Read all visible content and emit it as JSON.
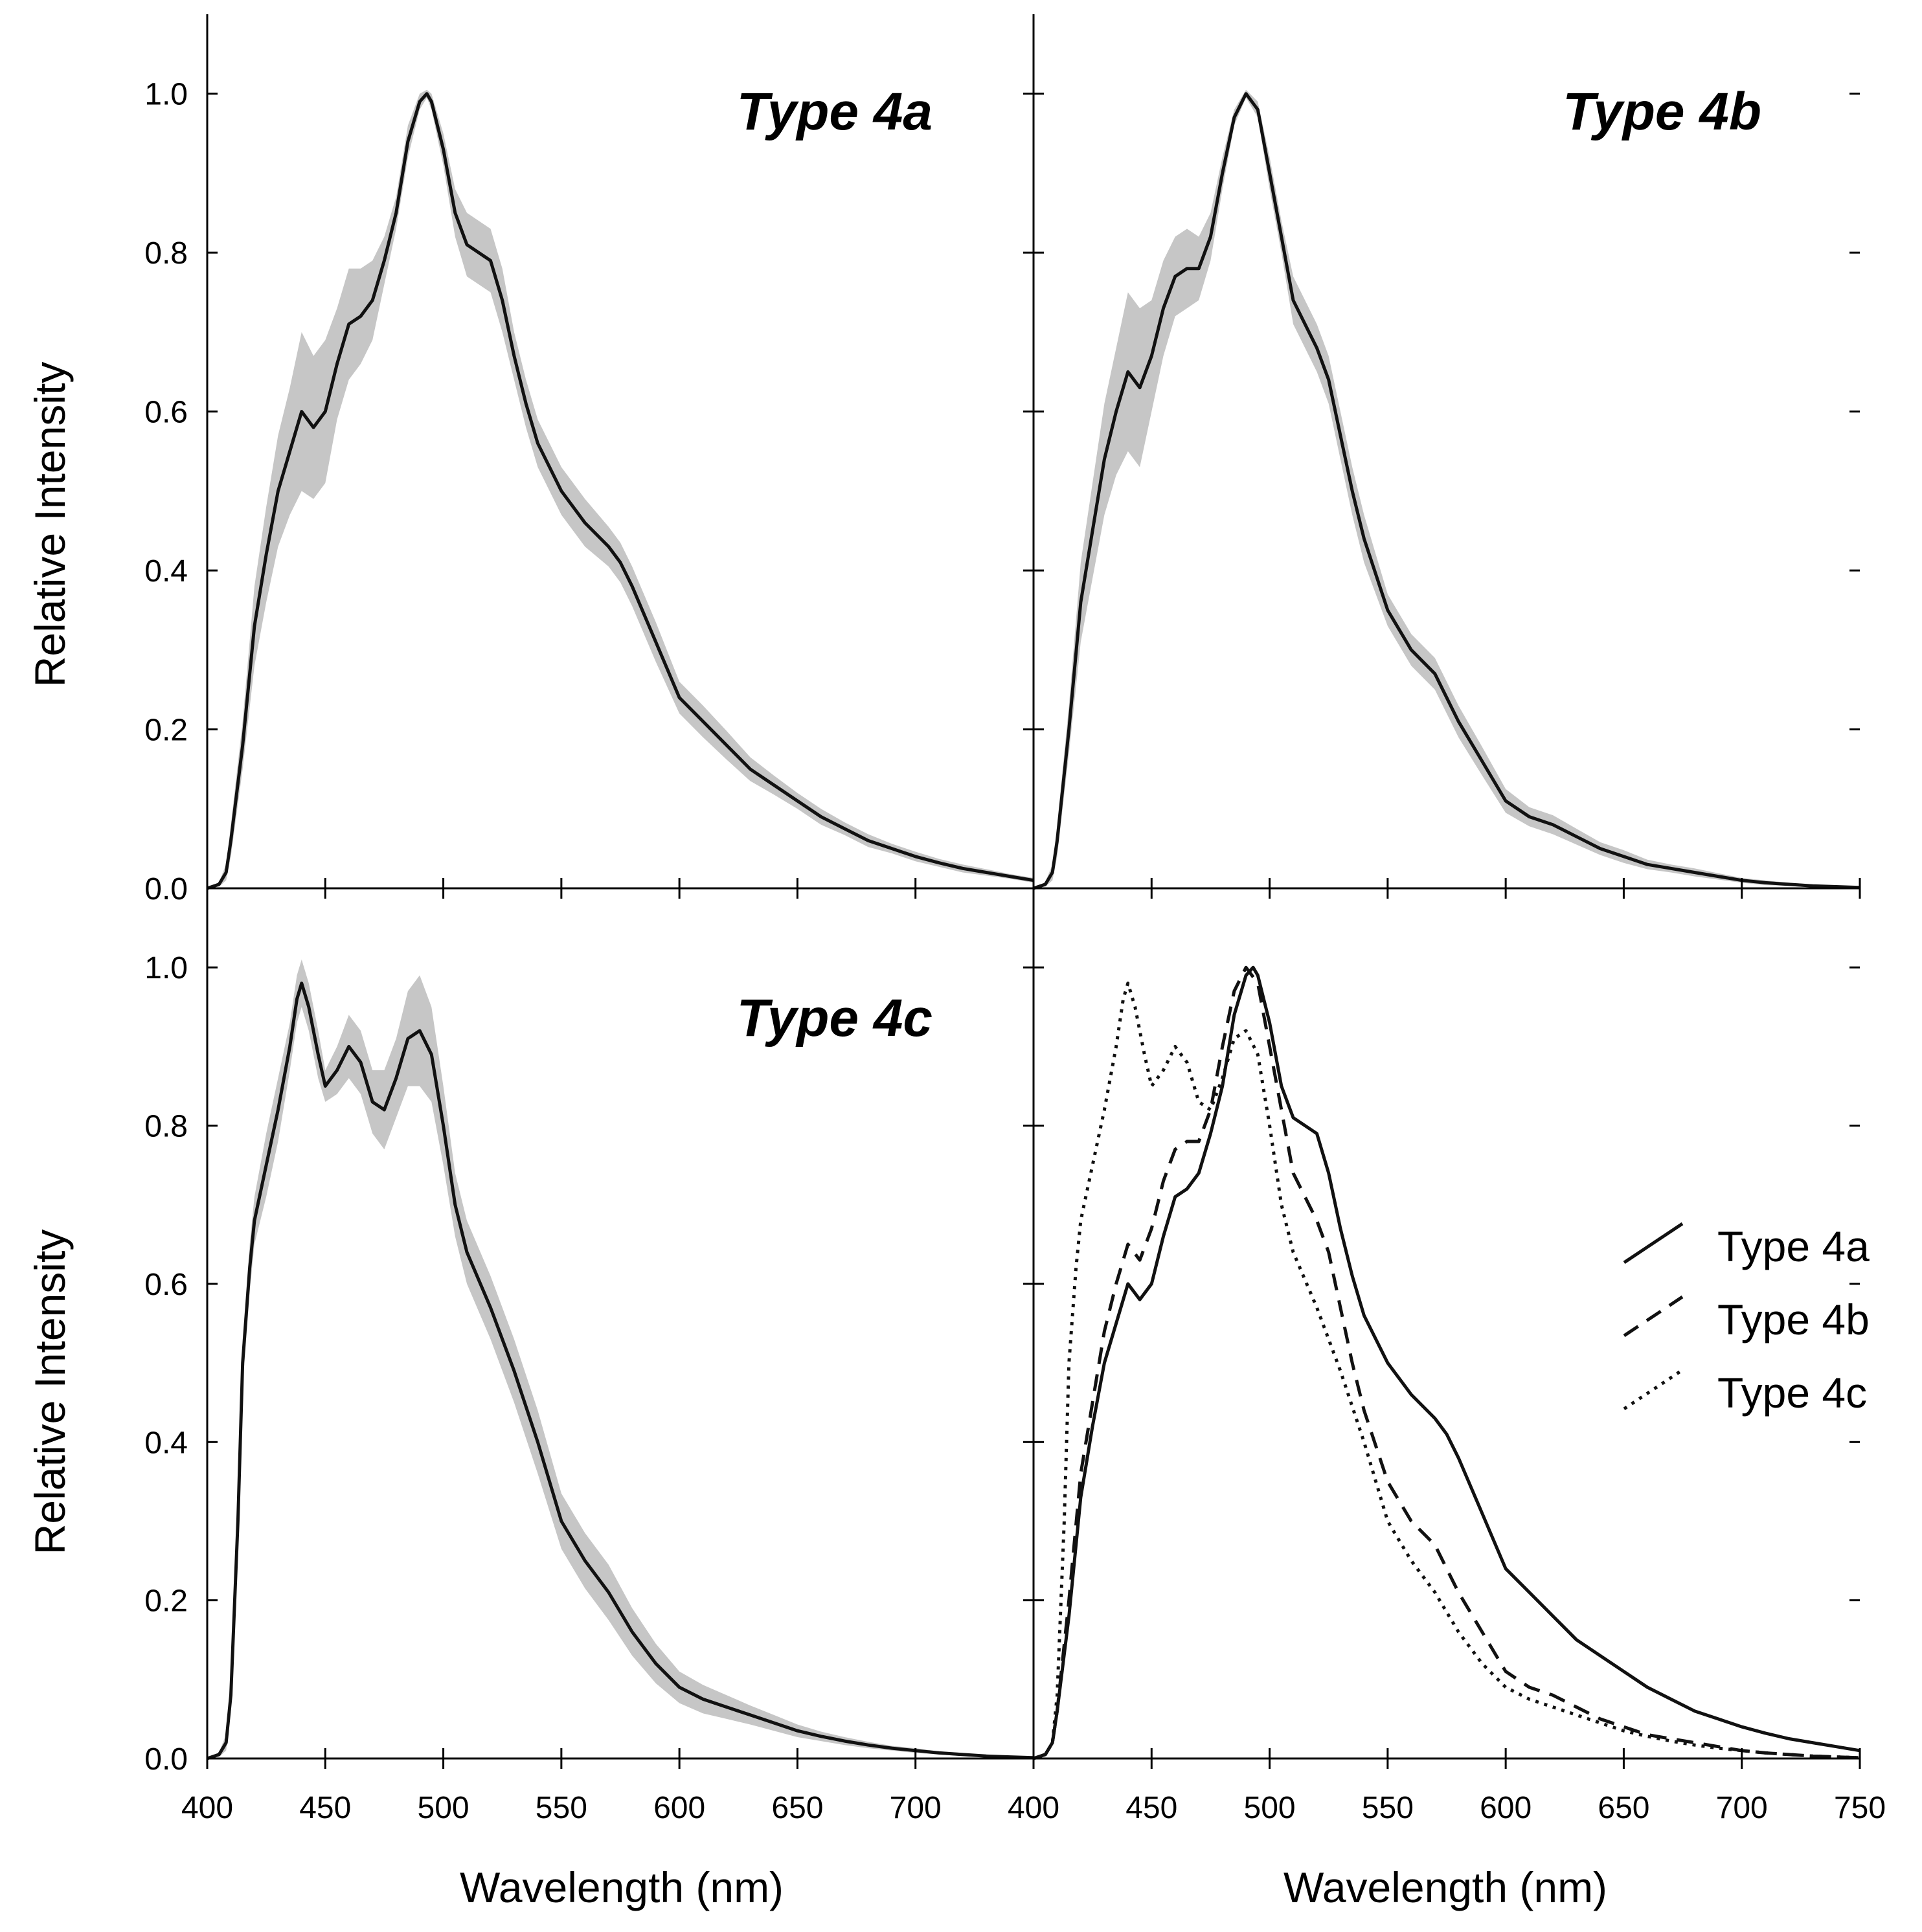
{
  "colors": {
    "line": "#111111",
    "band": "#c6c6c6",
    "axis": "#000000"
  },
  "chart_data": [
    {
      "type": "area",
      "panel": "top-left",
      "title": "Type 4a",
      "xlabel": "",
      "ylabel": "Relative Intensity",
      "xlim": [
        400,
        750
      ],
      "ylim": [
        0,
        1.1
      ],
      "series": [
        {
          "name": "Type 4a",
          "style": "solid",
          "x": [
            400,
            405,
            408,
            410,
            415,
            420,
            425,
            430,
            435,
            440,
            445,
            450,
            455,
            460,
            465,
            470,
            475,
            480,
            485,
            490,
            493,
            495,
            500,
            505,
            510,
            520,
            525,
            530,
            535,
            540,
            550,
            560,
            570,
            575,
            580,
            590,
            600,
            610,
            620,
            630,
            640,
            650,
            660,
            670,
            680,
            690,
            700,
            710,
            720,
            730,
            740,
            750
          ],
          "y": [
            0,
            0.005,
            0.02,
            0.06,
            0.18,
            0.33,
            0.42,
            0.5,
            0.55,
            0.6,
            0.58,
            0.6,
            0.66,
            0.71,
            0.72,
            0.74,
            0.79,
            0.85,
            0.94,
            0.99,
            1.0,
            0.99,
            0.93,
            0.85,
            0.81,
            0.79,
            0.74,
            0.67,
            0.61,
            0.56,
            0.5,
            0.46,
            0.43,
            0.41,
            0.38,
            0.31,
            0.24,
            0.21,
            0.18,
            0.15,
            0.13,
            0.11,
            0.09,
            0.075,
            0.06,
            0.05,
            0.04,
            0.032,
            0.025,
            0.02,
            0.015,
            0.01
          ],
          "band_halfwidth": [
            0,
            0.003,
            0.01,
            0.02,
            0.03,
            0.05,
            0.06,
            0.07,
            0.08,
            0.1,
            0.09,
            0.09,
            0.07,
            0.07,
            0.06,
            0.05,
            0.03,
            0.02,
            0.02,
            0.01,
            0.005,
            0.01,
            0.02,
            0.03,
            0.04,
            0.04,
            0.04,
            0.03,
            0.03,
            0.03,
            0.03,
            0.03,
            0.025,
            0.025,
            0.025,
            0.025,
            0.02,
            0.02,
            0.018,
            0.015,
            0.012,
            0.01,
            0.01,
            0.008,
            0.008,
            0.006,
            0.006,
            0.005,
            0.005,
            0.004,
            0.003,
            0.003
          ]
        }
      ]
    },
    {
      "type": "area",
      "panel": "top-right",
      "title": "Type 4b",
      "xlabel": "",
      "ylabel": "",
      "xlim": [
        400,
        750
      ],
      "ylim": [
        0,
        1.1
      ],
      "series": [
        {
          "name": "Type 4b",
          "style": "solid",
          "x": [
            400,
            405,
            408,
            410,
            415,
            420,
            425,
            430,
            435,
            440,
            445,
            450,
            455,
            460,
            465,
            470,
            475,
            480,
            485,
            490,
            495,
            500,
            505,
            510,
            520,
            525,
            530,
            535,
            540,
            550,
            560,
            570,
            575,
            580,
            590,
            600,
            610,
            620,
            630,
            640,
            650,
            660,
            670,
            680,
            690,
            700,
            710,
            720,
            730,
            740,
            750
          ],
          "y": [
            0,
            0.005,
            0.02,
            0.06,
            0.2,
            0.36,
            0.45,
            0.54,
            0.6,
            0.65,
            0.63,
            0.67,
            0.73,
            0.77,
            0.78,
            0.78,
            0.82,
            0.9,
            0.97,
            1.0,
            0.98,
            0.9,
            0.82,
            0.74,
            0.68,
            0.64,
            0.57,
            0.5,
            0.44,
            0.35,
            0.3,
            0.27,
            0.24,
            0.21,
            0.16,
            0.11,
            0.09,
            0.08,
            0.065,
            0.05,
            0.04,
            0.03,
            0.025,
            0.02,
            0.015,
            0.01,
            0.007,
            0.005,
            0.003,
            0.002,
            0.001
          ],
          "band_halfwidth": [
            0,
            0.003,
            0.01,
            0.02,
            0.03,
            0.05,
            0.06,
            0.07,
            0.08,
            0.1,
            0.1,
            0.07,
            0.06,
            0.05,
            0.05,
            0.04,
            0.03,
            0.02,
            0.01,
            0.005,
            0.01,
            0.02,
            0.02,
            0.03,
            0.03,
            0.03,
            0.03,
            0.03,
            0.03,
            0.02,
            0.02,
            0.02,
            0.02,
            0.02,
            0.018,
            0.015,
            0.012,
            0.012,
            0.01,
            0.008,
            0.008,
            0.006,
            0.005,
            0.005,
            0.004,
            0.003,
            0.003,
            0.002,
            0.002,
            0.001,
            0.001
          ]
        }
      ]
    },
    {
      "type": "area",
      "panel": "bottom-left",
      "title": "Type 4c",
      "xlabel": "Wavelength (nm)",
      "ylabel": "Relative Intensity",
      "xlim": [
        400,
        750
      ],
      "ylim": [
        0,
        1.1
      ],
      "series": [
        {
          "name": "Type 4c",
          "style": "solid",
          "x": [
            400,
            405,
            408,
            410,
            413,
            415,
            418,
            420,
            425,
            430,
            435,
            438,
            440,
            443,
            447,
            450,
            455,
            460,
            465,
            470,
            475,
            480,
            485,
            490,
            495,
            500,
            505,
            510,
            520,
            530,
            540,
            550,
            560,
            570,
            580,
            590,
            600,
            610,
            620,
            630,
            640,
            650,
            660,
            670,
            680,
            690,
            700,
            710,
            720,
            730,
            740,
            750
          ],
          "y": [
            0,
            0.005,
            0.02,
            0.08,
            0.3,
            0.5,
            0.62,
            0.68,
            0.75,
            0.82,
            0.9,
            0.96,
            0.98,
            0.95,
            0.89,
            0.85,
            0.87,
            0.9,
            0.88,
            0.83,
            0.82,
            0.86,
            0.91,
            0.92,
            0.89,
            0.8,
            0.7,
            0.64,
            0.57,
            0.49,
            0.4,
            0.3,
            0.25,
            0.21,
            0.16,
            0.12,
            0.09,
            0.075,
            0.065,
            0.055,
            0.045,
            0.035,
            0.028,
            0.022,
            0.017,
            0.013,
            0.01,
            0.007,
            0.005,
            0.003,
            0.002,
            0.001
          ],
          "band_halfwidth": [
            0,
            0.003,
            0.01,
            0.02,
            0.03,
            0.03,
            0.03,
            0.03,
            0.04,
            0.04,
            0.03,
            0.03,
            0.03,
            0.03,
            0.03,
            0.02,
            0.03,
            0.04,
            0.04,
            0.04,
            0.05,
            0.05,
            0.06,
            0.07,
            0.06,
            0.05,
            0.04,
            0.04,
            0.04,
            0.04,
            0.04,
            0.035,
            0.035,
            0.035,
            0.03,
            0.025,
            0.02,
            0.018,
            0.015,
            0.012,
            0.01,
            0.008,
            0.006,
            0.005,
            0.004,
            0.003,
            0.003,
            0.002,
            0.002,
            0.001,
            0.001,
            0.001
          ]
        }
      ]
    },
    {
      "type": "line",
      "panel": "bottom-right",
      "title": "",
      "xlabel": "Wavelength (nm)",
      "ylabel": "",
      "xlim": [
        400,
        750
      ],
      "ylim": [
        0,
        1.1
      ],
      "legend_position": "middle-right",
      "series": [
        {
          "name": "Type 4a",
          "style": "solid",
          "x": [
            400,
            405,
            408,
            410,
            415,
            420,
            425,
            430,
            435,
            440,
            445,
            450,
            455,
            460,
            465,
            470,
            475,
            480,
            485,
            490,
            493,
            495,
            500,
            505,
            510,
            520,
            525,
            530,
            535,
            540,
            550,
            560,
            570,
            575,
            580,
            590,
            600,
            610,
            620,
            630,
            640,
            650,
            660,
            670,
            680,
            690,
            700,
            710,
            720,
            730,
            740,
            750
          ],
          "y": [
            0,
            0.005,
            0.02,
            0.06,
            0.18,
            0.33,
            0.42,
            0.5,
            0.55,
            0.6,
            0.58,
            0.6,
            0.66,
            0.71,
            0.72,
            0.74,
            0.79,
            0.85,
            0.94,
            0.99,
            1.0,
            0.99,
            0.93,
            0.85,
            0.81,
            0.79,
            0.74,
            0.67,
            0.61,
            0.56,
            0.5,
            0.46,
            0.43,
            0.41,
            0.38,
            0.31,
            0.24,
            0.21,
            0.18,
            0.15,
            0.13,
            0.11,
            0.09,
            0.075,
            0.06,
            0.05,
            0.04,
            0.032,
            0.025,
            0.02,
            0.015,
            0.01
          ]
        },
        {
          "name": "Type 4b",
          "style": "dashed",
          "x": [
            400,
            405,
            408,
            410,
            415,
            420,
            425,
            430,
            435,
            440,
            445,
            450,
            455,
            460,
            465,
            470,
            475,
            480,
            485,
            490,
            495,
            500,
            505,
            510,
            520,
            525,
            530,
            535,
            540,
            550,
            560,
            570,
            575,
            580,
            590,
            600,
            610,
            620,
            630,
            640,
            650,
            660,
            670,
            680,
            690,
            700,
            710,
            720,
            730,
            740,
            750
          ],
          "y": [
            0,
            0.005,
            0.02,
            0.06,
            0.2,
            0.36,
            0.45,
            0.54,
            0.6,
            0.65,
            0.63,
            0.67,
            0.73,
            0.77,
            0.78,
            0.78,
            0.82,
            0.9,
            0.97,
            1.0,
            0.98,
            0.9,
            0.82,
            0.74,
            0.68,
            0.64,
            0.57,
            0.5,
            0.44,
            0.35,
            0.3,
            0.27,
            0.24,
            0.21,
            0.16,
            0.11,
            0.09,
            0.08,
            0.065,
            0.05,
            0.04,
            0.03,
            0.025,
            0.02,
            0.015,
            0.01,
            0.007,
            0.005,
            0.003,
            0.002,
            0.001
          ]
        },
        {
          "name": "Type 4c",
          "style": "dotted",
          "x": [
            400,
            405,
            408,
            410,
            413,
            415,
            418,
            420,
            425,
            430,
            435,
            438,
            440,
            443,
            447,
            450,
            455,
            460,
            465,
            470,
            475,
            480,
            485,
            490,
            495,
            500,
            505,
            510,
            520,
            530,
            540,
            550,
            560,
            570,
            580,
            590,
            600,
            610,
            620,
            630,
            640,
            650,
            660,
            670,
            680,
            690,
            700,
            710,
            720,
            730,
            740,
            750
          ],
          "y": [
            0,
            0.005,
            0.02,
            0.08,
            0.3,
            0.5,
            0.62,
            0.68,
            0.75,
            0.82,
            0.9,
            0.96,
            0.98,
            0.95,
            0.89,
            0.85,
            0.87,
            0.9,
            0.88,
            0.83,
            0.82,
            0.86,
            0.91,
            0.92,
            0.89,
            0.8,
            0.7,
            0.64,
            0.57,
            0.49,
            0.4,
            0.3,
            0.25,
            0.21,
            0.16,
            0.12,
            0.09,
            0.075,
            0.065,
            0.055,
            0.045,
            0.035,
            0.028,
            0.022,
            0.017,
            0.013,
            0.01,
            0.007,
            0.005,
            0.003,
            0.002,
            0.001
          ]
        }
      ]
    }
  ],
  "x_tick_labels_left": [
    "400",
    "450",
    "500",
    "550",
    "600",
    "650",
    "700"
  ],
  "x_tick_labels_right": [
    "400",
    "450",
    "500",
    "550",
    "600",
    "650",
    "700",
    "750"
  ],
  "y_tick_labels": [
    "0.0",
    "0.2",
    "0.4",
    "0.6",
    "0.8",
    "1.0"
  ],
  "legend": {
    "items": [
      "Type 4a",
      "Type 4b",
      "Type 4c"
    ]
  }
}
